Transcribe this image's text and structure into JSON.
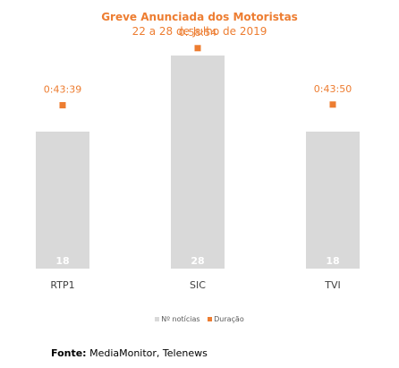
{
  "chart_data": {
    "type": "bar",
    "title": "Greve Anunciada dos Motoristas",
    "subtitle": "22 a 28 de Julho de 2019",
    "categories": [
      "RTP1",
      "SIC",
      "TVI"
    ],
    "series": [
      {
        "name": "Nº notícias",
        "type": "bar",
        "values": [
          18,
          28,
          18
        ],
        "color": "#d9d9d9"
      },
      {
        "name": "Duração",
        "type": "scatter",
        "values": [
          "0:43:39",
          "0:58:54",
          "0:43:50"
        ],
        "values_seconds": [
          2619,
          3534,
          2630
        ],
        "color": "#ed7d31"
      }
    ],
    "bar_ylim": [
      0,
      30
    ],
    "duration_ylim_seconds": [
      0,
      3660
    ],
    "legend_position": "bottom",
    "grid": false
  },
  "source": {
    "label": "Fonte:",
    "text": "MediaMonitor, Telenews"
  }
}
